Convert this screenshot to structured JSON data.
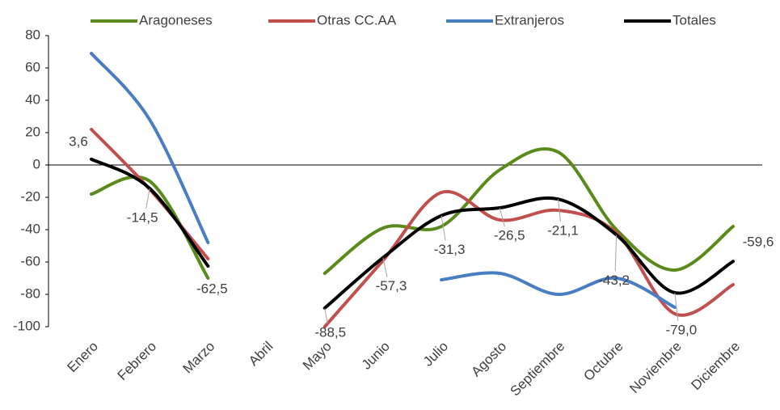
{
  "chart_data": {
    "type": "line",
    "categories": [
      "Enero",
      "Febrero",
      "Marzo",
      "Abril",
      "Mayo",
      "Junio",
      "Julio",
      "Agosto",
      "Septiembre",
      "Octubre",
      "Noviembre",
      "Diciembre"
    ],
    "series": [
      {
        "name": "Aragoneses",
        "color": "#5b8a1c",
        "values": [
          -18,
          -10,
          -70,
          null,
          -67,
          -39,
          -38,
          -3,
          8,
          -40,
          -65,
          -38
        ]
      },
      {
        "name": "Otras CC.AA",
        "color": "#c0504d",
        "values": [
          22,
          -15,
          -58,
          null,
          -100,
          -59,
          -17,
          -34,
          -28,
          -42,
          -92,
          -74
        ]
      },
      {
        "name": "Extranjeros",
        "color": "#4a7ec2",
        "values": [
          69,
          28,
          -48,
          null,
          null,
          null,
          -71,
          -67,
          -80,
          -70,
          -88,
          null
        ]
      },
      {
        "name": "Totales",
        "color": "#000000",
        "values": [
          3.6,
          -14.5,
          -62.5,
          null,
          -88.5,
          -57.3,
          -31.3,
          -26.5,
          -21.1,
          -43.2,
          -79.0,
          -59.6
        ],
        "value_labels": [
          "3,6",
          "-14,5",
          "-62,5",
          null,
          "-88,5",
          "-57,3",
          "-31,3",
          "-26,5",
          "-21,1",
          "-43,2",
          "-79,0",
          "-59,6"
        ]
      }
    ],
    "ylim": [
      -100,
      80
    ],
    "yticks": [
      -100,
      -80,
      -60,
      -40,
      -20,
      0,
      20,
      40,
      60,
      80
    ],
    "legend": "top",
    "smooth": true
  }
}
